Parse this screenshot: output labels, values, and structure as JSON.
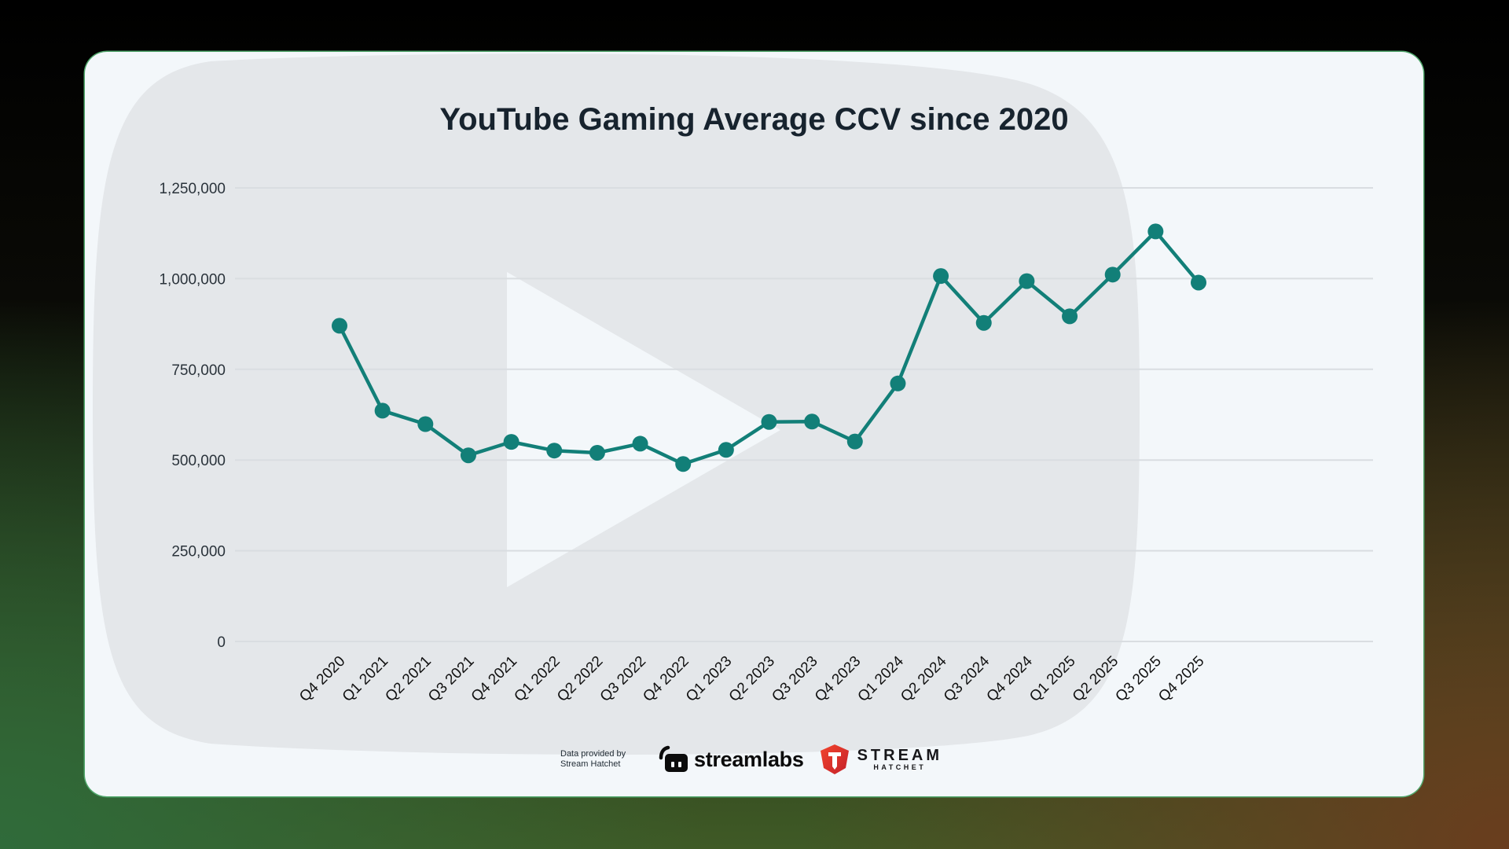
{
  "card": {
    "title": "YouTube Gaming Average CCV since 2020"
  },
  "footer": {
    "credit_line1": "Data provided by",
    "credit_line2": "Stream Hatchet",
    "streamlabs_label": "streamlabs",
    "streamhatchet_main": "STREAM",
    "streamhatchet_sub": "HATCHET"
  },
  "colors": {
    "line": "#127f78",
    "grid": "#d9dde1",
    "title": "#17232e",
    "card_bg": "#f3f7fa",
    "watermark": "#e4e7ea",
    "streamhatchet_red": "#d83228"
  },
  "chart_data": {
    "type": "line",
    "title": "YouTube Gaming Average CCV since 2020",
    "xlabel": "",
    "ylabel": "",
    "ylim": [
      0,
      1250000
    ],
    "yticks": [
      0,
      250000,
      500000,
      750000,
      1000000,
      1250000
    ],
    "ytick_labels": [
      "0",
      "250,000",
      "500,000",
      "750,000",
      "1,000,000",
      "1,250,000"
    ],
    "grid": true,
    "legend": null,
    "categories": [
      "Q4 2020",
      "Q1 2021",
      "Q2 2021",
      "Q3 2021",
      "Q4 2021",
      "Q1 2022",
      "Q2 2022",
      "Q3 2022",
      "Q4 2022",
      "Q1 2023",
      "Q2 2023",
      "Q3 2023",
      "Q4 2023",
      "Q1 2024",
      "Q2 2024",
      "Q3 2024",
      "Q4 2024",
      "Q1 2025",
      "Q2 2025",
      "Q3 2025",
      "Q4 2025"
    ],
    "series": [
      {
        "name": "Average CCV",
        "values": [
          870000,
          636000,
          599000,
          513000,
          550000,
          526000,
          520000,
          545000,
          489000,
          528000,
          605000,
          606000,
          551000,
          711000,
          1007000,
          878000,
          993000,
          896000,
          1011000,
          1130000,
          989000
        ]
      }
    ]
  }
}
